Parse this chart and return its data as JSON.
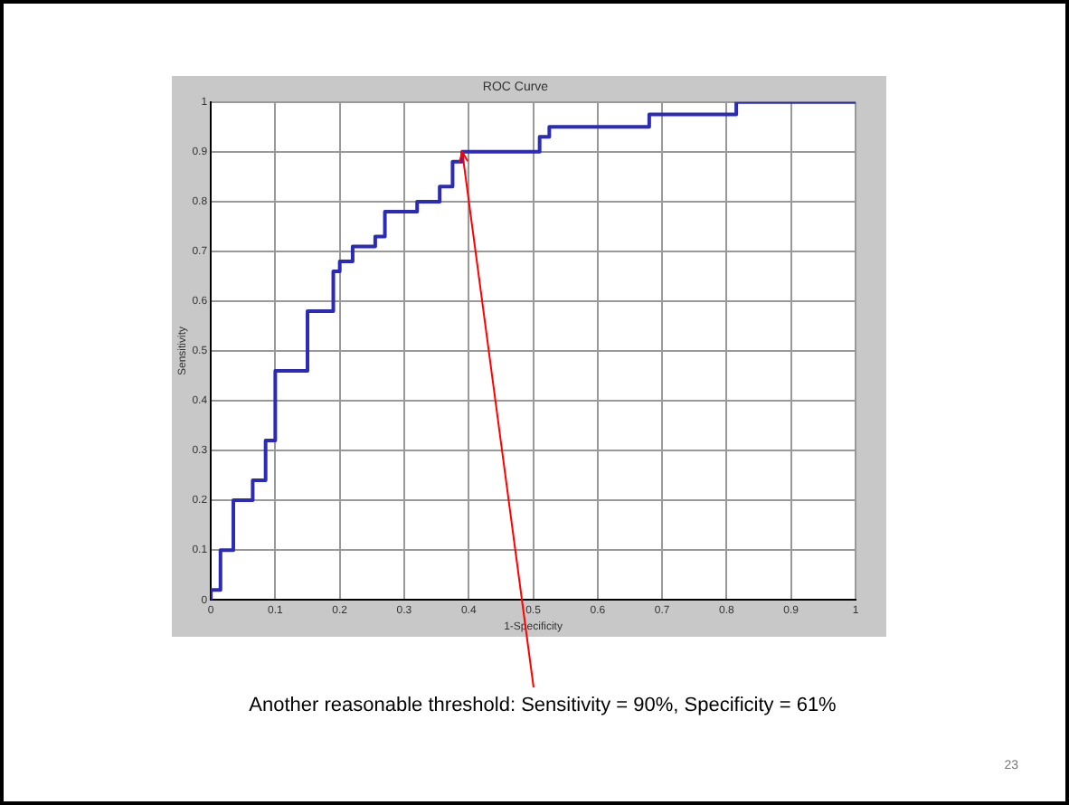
{
  "chart_data": {
    "type": "step",
    "title": "ROC Curve",
    "xlabel": "1-Specificity",
    "ylabel": "Sensitivity",
    "x": [
      0,
      0,
      0.015,
      0.035,
      0.065,
      0.085,
      0.1,
      0.15,
      0.19,
      0.2,
      0.22,
      0.255,
      0.27,
      0.32,
      0.355,
      0.375,
      0.39,
      0.51,
      0.525,
      0.68,
      0.815,
      1
    ],
    "series": [
      {
        "color": "#2b2bb8",
        "values": [
          0,
          0.02,
          0.1,
          0.2,
          0.24,
          0.32,
          0.46,
          0.58,
          0.66,
          0.68,
          0.71,
          0.73,
          0.78,
          0.8,
          0.83,
          0.88,
          0.9,
          0.93,
          0.95,
          0.975,
          1,
          1
        ]
      }
    ],
    "xlim": [
      0,
      1
    ],
    "ylim": [
      0,
      1
    ],
    "xticks": [
      0,
      0.1,
      0.2,
      0.3,
      0.4,
      0.5,
      0.6,
      0.7,
      0.8,
      0.9,
      1
    ],
    "yticks": [
      0,
      0.1,
      0.2,
      0.3,
      0.4,
      0.5,
      0.6,
      0.7,
      0.8,
      0.9,
      1
    ],
    "grid": true,
    "legend": false,
    "marker": "none",
    "line_style": "solid",
    "annotations": [
      {
        "text": "Another reasonable threshold: Sensitivity = 90%, Specificity = 61%",
        "x": 0.39,
        "y": 0.9
      },
      "23"
    ]
  }
}
